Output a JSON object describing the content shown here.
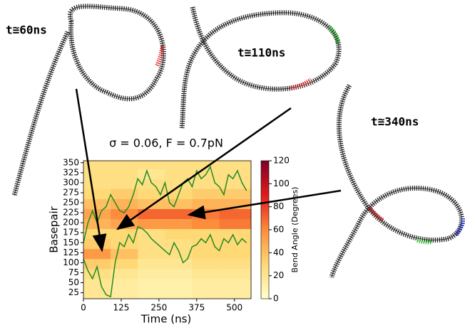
{
  "chart_data": {
    "type": "heatmap",
    "title": "σ = 0.06, F = 0.7pN",
    "xlabel": "Time (ns)",
    "ylabel": "Basepair",
    "colorbar_label": "Bend Angle (Degrees)",
    "annotations": [
      "t≅60ns",
      "t≅110ns",
      "t≅340ns"
    ],
    "xlim": [
      0,
      555
    ],
    "xticks": [
      0,
      125,
      250,
      375,
      500
    ],
    "ylim": [
      10,
      355
    ],
    "yticks": [
      25,
      50,
      75,
      100,
      125,
      150,
      175,
      200,
      225,
      250,
      275,
      300,
      325,
      350
    ],
    "clim": [
      0,
      120
    ],
    "cticks": [
      0,
      20,
      40,
      60,
      80,
      100,
      120
    ],
    "colorscale": [
      "#ffffcc",
      "#fed976",
      "#fd8d3c",
      "#e31a1c",
      "#800026"
    ],
    "x_bins": [
      0,
      90,
      180,
      270,
      360,
      450,
      555
    ],
    "y_bins": [
      10,
      35,
      60,
      85,
      110,
      135,
      160,
      185,
      210,
      235,
      260,
      285,
      310,
      335,
      355
    ],
    "z": [
      [
        20,
        15,
        12,
        12,
        15,
        15
      ],
      [
        20,
        15,
        12,
        12,
        15,
        15
      ],
      [
        25,
        20,
        15,
        15,
        20,
        20
      ],
      [
        35,
        30,
        20,
        20,
        25,
        25
      ],
      [
        55,
        40,
        25,
        25,
        30,
        30
      ],
      [
        35,
        30,
        25,
        25,
        30,
        30
      ],
      [
        30,
        30,
        25,
        30,
        30,
        30
      ],
      [
        45,
        50,
        55,
        55,
        60,
        65
      ],
      [
        50,
        60,
        70,
        70,
        65,
        70
      ],
      [
        40,
        45,
        40,
        40,
        45,
        45
      ],
      [
        30,
        35,
        30,
        30,
        35,
        35
      ],
      [
        25,
        25,
        25,
        25,
        25,
        25
      ],
      [
        25,
        25,
        20,
        25,
        25,
        25
      ],
      [
        25,
        25,
        25,
        25,
        25,
        25
      ]
    ],
    "x": [
      0,
      15,
      30,
      45,
      60,
      75,
      90,
      105,
      120,
      135,
      150,
      165,
      180,
      195,
      210,
      225,
      240,
      255,
      270,
      285,
      300,
      315,
      330,
      345,
      360,
      375,
      390,
      405,
      420,
      435,
      450,
      465,
      480,
      495,
      510,
      525,
      540
    ],
    "series": [
      {
        "color": "#228b22",
        "values": [
          150,
          200,
          230,
          200,
          230,
          240,
          270,
          250,
          230,
          225,
          240,
          270,
          310,
          295,
          330,
          300,
          290,
          270,
          300,
          250,
          240,
          270,
          300,
          310,
          290,
          330,
          310,
          320,
          340,
          300,
          290,
          270,
          320,
          310,
          330,
          300,
          280
        ]
      },
      {
        "color": "#228b22",
        "values": [
          110,
          80,
          60,
          90,
          40,
          20,
          15,
          100,
          150,
          140,
          170,
          150,
          190,
          185,
          175,
          160,
          150,
          140,
          130,
          120,
          150,
          130,
          100,
          110,
          140,
          145,
          160,
          150,
          170,
          140,
          130,
          160,
          150,
          170,
          145,
          160,
          150
        ]
      }
    ]
  }
}
